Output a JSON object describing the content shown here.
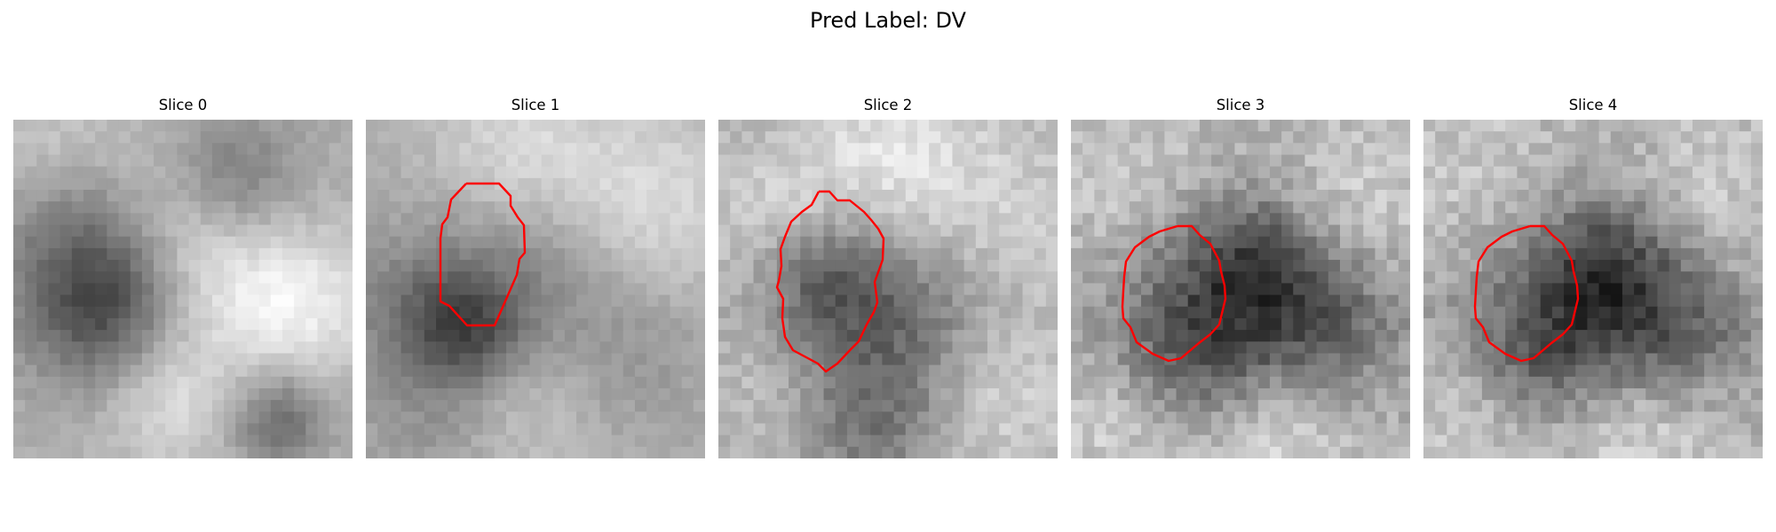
{
  "figure": {
    "title": "Pred Label: DV",
    "contour_color": "#ff0000"
  },
  "panels": [
    {
      "title": "Slice 0",
      "image": "Grayscale microscopy crop with light and dark blob texture",
      "has_contour": false
    },
    {
      "title": "Slice 1",
      "image": "Grayscale microscopy crop with a mid-gray rounded region outlined in red",
      "has_contour": true
    },
    {
      "title": "Slice 2",
      "image": "Grayscale microscopy crop with a dark textured rounded region outlined in red",
      "has_contour": true
    },
    {
      "title": "Slice 3",
      "image": "Grayscale microscopy crop with a dark noisy rounded region outlined in red",
      "has_contour": true
    },
    {
      "title": "Slice 4",
      "image": "Grayscale microscopy crop with a dark noisy rounded region outlined in red",
      "has_contour": true
    }
  ]
}
